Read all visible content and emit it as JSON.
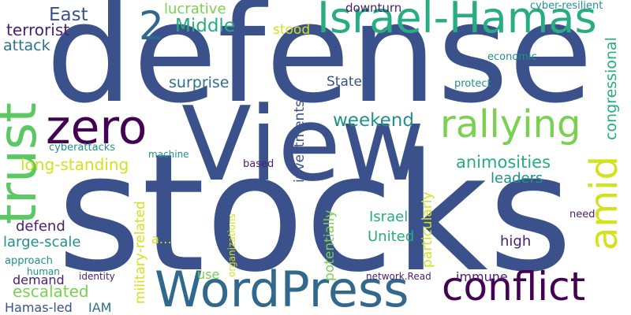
{
  "words": {
    "defense": "defense",
    "stocks": "stocks",
    "view": "View",
    "zero": "zero",
    "trust": "trust",
    "israel_hamas": "Israel-Hamas",
    "rallying": "rallying",
    "wordpress": "WordPress",
    "conflict": "conflict",
    "amid": "amid",
    "two": "2",
    "east": "East",
    "middle": "Middle",
    "terrorist": "terrorist",
    "attack": "attack",
    "lucrative": "lucrative",
    "downturn": "downturn",
    "cyber_resilient": "cyber-resilient",
    "stood": "stood",
    "congressional": "congressional",
    "economic": "economic",
    "protect": "protect",
    "states": "States",
    "surprise": "surprise",
    "investments": "investments",
    "weekend": "weekend",
    "long_standing": "long-standing",
    "animosities": "animosities",
    "cyberattacks": "cyberattacks",
    "machine": "machine",
    "based": "based",
    "leaders": "leaders",
    "large_scale": "large-scale",
    "defend": "defend",
    "israel": "Israel",
    "united": "United",
    "military_related": "military-related",
    "particularly": "particularly",
    "potentially": "potentially",
    "organizations": "organizations",
    "a_ellipsis": "a…",
    "high": "high",
    "need": "need",
    "approach": "approach",
    "human": "human",
    "demand": "demand",
    "identity": "identity",
    "use": "use",
    "network_read": "network.Read",
    "immune": "immune",
    "escalated": "escalated",
    "hamas_led": "Hamas-led",
    "iam": "IAM"
  },
  "palette": {
    "navy": "#3b518b",
    "indigo": "#440154",
    "teal_blue": "#2c718e",
    "teal": "#21908d",
    "green": "#27ad81",
    "lime": "#5cc863",
    "light_green": "#7ad151",
    "yellow": "#d2e21b",
    "dark_purple": "#481f70",
    "slate": "#31688e"
  }
}
